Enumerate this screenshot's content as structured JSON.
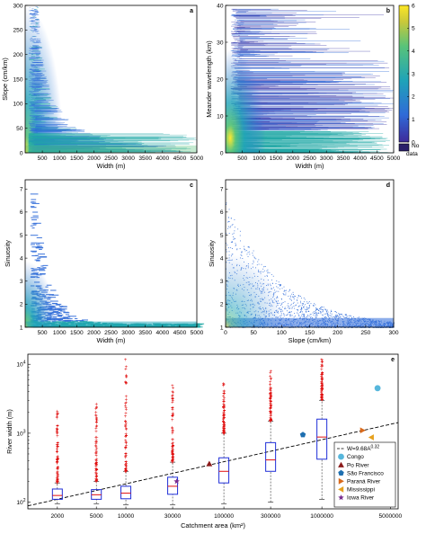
{
  "chart_data": [
    {
      "panel": "a",
      "type": "heatmap",
      "xlabel": "Width (m)",
      "ylabel": "Slope (cm/km)",
      "xlim": [
        0,
        5000
      ],
      "ylim": [
        0,
        300
      ],
      "xticks": [
        500,
        1000,
        1500,
        2000,
        2500,
        3000,
        3500,
        4000,
        4500,
        5000
      ],
      "yticks": [
        0,
        50,
        100,
        150,
        200,
        250,
        300
      ],
      "description_points": [
        [
          100,
          280
        ],
        [
          300,
          200
        ],
        [
          500,
          130
        ],
        [
          1000,
          90
        ],
        [
          2000,
          60
        ],
        [
          3000,
          45
        ],
        [
          4000,
          35
        ],
        [
          5000,
          30
        ]
      ]
    },
    {
      "panel": "b",
      "type": "heatmap",
      "xlabel": "Width (m)",
      "ylabel": "Meander wavelength (km)",
      "xlim": [
        0,
        5000
      ],
      "ylim": [
        0,
        40
      ],
      "xticks": [
        500,
        1000,
        1500,
        2000,
        2500,
        3000,
        3500,
        4000,
        4500,
        5000
      ],
      "yticks": [
        0,
        10,
        20,
        30,
        40
      ],
      "colorbar": {
        "ticks": [
          0,
          1,
          2,
          3,
          4,
          5,
          6
        ],
        "no_data_label": "No data"
      }
    },
    {
      "panel": "c",
      "type": "heatmap",
      "xlabel": "Width (m)",
      "ylabel": "Sinuosity",
      "xlim": [
        0,
        5000
      ],
      "ylim": [
        1,
        7.4
      ],
      "xticks": [
        500,
        1000,
        1500,
        2000,
        2500,
        3000,
        3500,
        4000,
        4500,
        5000
      ],
      "yticks": [
        1,
        2,
        3,
        4,
        5,
        6,
        7
      ]
    },
    {
      "panel": "d",
      "type": "heatmap",
      "xlabel": "Slope (cm/km)",
      "ylabel": "Sinuosity",
      "xlim": [
        0,
        300
      ],
      "ylim": [
        1,
        7.4
      ],
      "xticks": [
        0,
        50,
        100,
        150,
        200,
        250,
        300
      ],
      "yticks": [
        1,
        2,
        3,
        4,
        5,
        6,
        7
      ]
    },
    {
      "panel": "e",
      "type": "box",
      "xlabel": "Catchment area (km²)",
      "ylabel": "River width (m)",
      "xscale": "log",
      "yscale": "log",
      "xlim": [
        1000,
        6000000
      ],
      "ylim": [
        80,
        14000
      ],
      "xticks": [
        2000,
        5000,
        10000,
        30000,
        100000,
        300000,
        1000000,
        5000000
      ],
      "yticks": [
        "10^2",
        "10^3",
        "10^4"
      ],
      "boxes": [
        {
          "x": 2000,
          "q1": 110,
          "median": 125,
          "q3": 155,
          "whisker_low": 95,
          "whisker_high": 190,
          "outliers_top": 2200
        },
        {
          "x": 5000,
          "q1": 110,
          "median": 128,
          "q3": 152,
          "whisker_low": 95,
          "whisker_high": 200,
          "outliers_top": 3000
        },
        {
          "x": 10000,
          "q1": 112,
          "median": 135,
          "q3": 170,
          "whisker_low": 92,
          "whisker_high": 280,
          "outliers_top": 12000
        },
        {
          "x": 30000,
          "q1": 130,
          "median": 170,
          "q3": 230,
          "whisker_low": 92,
          "whisker_high": 380,
          "outliers_top": 6500
        },
        {
          "x": 100000,
          "q1": 190,
          "median": 280,
          "q3": 440,
          "whisker_low": 95,
          "whisker_high": 1000,
          "outliers_top": 5500
        },
        {
          "x": 300000,
          "q1": 280,
          "median": 410,
          "q3": 730,
          "whisker_low": 100,
          "whisker_high": 1500,
          "outliers_top": 8000
        },
        {
          "x": 1000000,
          "q1": 420,
          "median": 880,
          "q3": 1600,
          "whisker_low": 110,
          "whisker_high": 3000,
          "outliers_top": 12000
        }
      ],
      "fit_line": {
        "label": "W=9.68A",
        "exponent_label": "0.32",
        "coef": 9.68,
        "exponent": 0.32
      },
      "rivers": [
        {
          "name": "Congo",
          "x": 3700000,
          "y": 4500,
          "color": "#57b7dc",
          "marker": "circle"
        },
        {
          "name": "Po River",
          "x": 71000,
          "y": 360,
          "color": "#8b1a1a",
          "marker": "triangle-up"
        },
        {
          "name": "São Francisco",
          "x": 640000,
          "y": 950,
          "color": "#1e6fb0",
          "marker": "pentagon"
        },
        {
          "name": "Paraná River",
          "x": 2600000,
          "y": 1100,
          "color": "#d96a1c",
          "marker": "triangle-right"
        },
        {
          "name": "Mississippi",
          "x": 3200000,
          "y": 870,
          "color": "#e6a11e",
          "marker": "triangle-left"
        },
        {
          "name": "Iowa River",
          "x": 33000,
          "y": 200,
          "color": "#7a2f8f",
          "marker": "star"
        }
      ]
    }
  ],
  "colors": {
    "dense": "#fde725",
    "mid": "#21a8a6",
    "sparse": "#2f6bd8",
    "outlier": "#e01010",
    "box": "#1f2ed8",
    "median": "#e01010"
  }
}
